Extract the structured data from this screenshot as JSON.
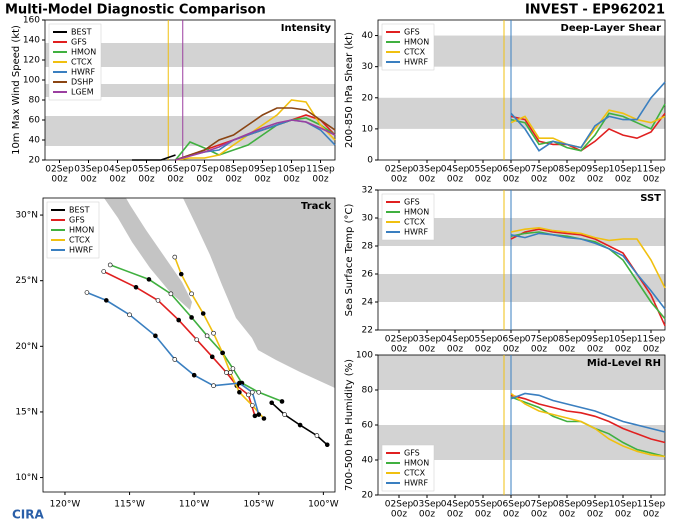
{
  "header": {
    "title": "Multi-Model Diagnostic Comparison",
    "storm": "INVEST - EP962021",
    "logo": "CIRA"
  },
  "chart_data": [
    {
      "type": "time",
      "title": "Intensity",
      "ylabel": "10m Max Wind Speed (kt)",
      "xlim": [
        "01Sep 12z",
        "11Sep 12z"
      ],
      "ylim": [
        20,
        160
      ],
      "yticks": [
        20,
        40,
        60,
        80,
        100,
        120,
        140,
        160
      ],
      "xticks": [
        [
          "02Sep",
          "00z"
        ],
        [
          "03Sep",
          "00z"
        ],
        [
          "04Sep",
          "00z"
        ],
        [
          "05Sep",
          "00z"
        ],
        [
          "06Sep",
          "00z"
        ],
        [
          "07Sep",
          "00z"
        ],
        [
          "08Sep",
          "00z"
        ],
        [
          "09Sep",
          "00z"
        ],
        [
          "10Sep",
          "00z"
        ],
        [
          "11Sep",
          "00z"
        ]
      ],
      "bands": [
        [
          34,
          64
        ],
        [
          83,
          96
        ],
        [
          113,
          137
        ]
      ],
      "legend": "upper left",
      "init_lines": [
        {
          "x": "05Sep 18z",
          "color": "#f0c010"
        },
        {
          "x": "06Sep 06z",
          "color": "#9b3fa0"
        }
      ],
      "x": [
        "06Sep 00z",
        "06Sep 12z",
        "07Sep 00z",
        "07Sep 12z",
        "08Sep 00z",
        "08Sep 12z",
        "09Sep 00z",
        "09Sep 12z",
        "10Sep 00z",
        "10Sep 12z",
        "11Sep 00z",
        "11Sep 12z"
      ],
      "series": [
        {
          "name": "BEST",
          "color": "#000000",
          "x": [
            "04Sep 12z",
            "05Sep 00z",
            "05Sep 12z",
            "06Sep 00z"
          ],
          "values": [
            20,
            20,
            20,
            25
          ]
        },
        {
          "name": "GFS",
          "color": "#e02020",
          "values": [
            20,
            25,
            30,
            35,
            40,
            45,
            50,
            55,
            60,
            65,
            60,
            45
          ]
        },
        {
          "name": "HMON",
          "color": "#40b040",
          "values": [
            20,
            38,
            32,
            25,
            30,
            35,
            45,
            55,
            60,
            62,
            55,
            45
          ]
        },
        {
          "name": "CTCX",
          "color": "#f0c010",
          "values": [
            20,
            22,
            22,
            25,
            35,
            45,
            55,
            65,
            80,
            78,
            55,
            40
          ]
        },
        {
          "name": "HWRF",
          "color": "#3a7fc0",
          "values": [
            20,
            25,
            28,
            30,
            40,
            45,
            50,
            55,
            60,
            58,
            50,
            35
          ]
        },
        {
          "name": "DSHP",
          "color": "#8b4513",
          "values": [
            20,
            25,
            30,
            40,
            45,
            55,
            65,
            72,
            72,
            70,
            60,
            50
          ]
        },
        {
          "name": "LGEM",
          "color": "#9b3fa0",
          "values": [
            20,
            24,
            28,
            33,
            40,
            46,
            52,
            57,
            60,
            58,
            52,
            45
          ]
        }
      ]
    },
    {
      "type": "track",
      "title": "Track",
      "xlim": [
        -121.7,
        -99.1
      ],
      "ylim": [
        8.9,
        31.3
      ],
      "legend": "upper left",
      "xticks": [
        {
          "value": -120,
          "label": "120°W"
        },
        {
          "value": -115,
          "label": "115°W"
        },
        {
          "value": -110,
          "label": "110°W"
        },
        {
          "value": -105,
          "label": "105°W"
        },
        {
          "value": -100,
          "label": "100°W"
        }
      ],
      "yticks": [
        {
          "value": 10,
          "label": "10°N"
        },
        {
          "value": 15,
          "label": "15°N"
        },
        {
          "value": 20,
          "label": "20°N"
        },
        {
          "value": 25,
          "label": "25°N"
        },
        {
          "value": 30,
          "label": "30°N"
        }
      ],
      "series": [
        {
          "name": "BEST",
          "color": "#000000",
          "lon": [
            -99.7,
            -100.5,
            -101.8,
            -103,
            -104
          ],
          "lat": [
            12.5,
            13.2,
            14.0,
            14.8,
            15.7
          ]
        },
        {
          "name": "GFS",
          "color": "#e02020",
          "lon": [
            -105.3,
            -105.8,
            -106.7,
            -107.5,
            -108.6,
            -109.8,
            -111.2,
            -112.8,
            -114.5,
            -117
          ],
          "lat": [
            14.7,
            16.3,
            17.0,
            18.0,
            19.2,
            20.5,
            22.0,
            23.5,
            24.5,
            25.7
          ]
        },
        {
          "name": "HMON",
          "color": "#40b040",
          "lon": [
            -103.2,
            -105,
            -106.3,
            -107,
            -107.8,
            -109,
            -110.2,
            -111.8,
            -113.5,
            -116.5
          ],
          "lat": [
            15.8,
            16.5,
            17.2,
            18.3,
            19.5,
            20.8,
            22.2,
            24.0,
            25.1,
            26.2
          ]
        },
        {
          "name": "CTCX",
          "color": "#f0c010",
          "lon": [
            -104.6,
            -105.5,
            -106.5,
            -107.2,
            -107.8,
            -108.5,
            -109.3,
            -110.2,
            -111,
            -111.5
          ],
          "lat": [
            14.5,
            15.5,
            16.5,
            18,
            19.5,
            21,
            22.5,
            24,
            25.5,
            26.8
          ]
        },
        {
          "name": "HWRF",
          "color": "#3a7fc0",
          "lon": [
            -105,
            -105.5,
            -106.5,
            -108.5,
            -110,
            -111.5,
            -113,
            -115,
            -116.8,
            -118.3
          ],
          "lat": [
            14.8,
            16.5,
            17.2,
            17.0,
            17.8,
            19,
            20.8,
            22.4,
            23.5,
            24.1
          ]
        }
      ]
    },
    {
      "type": "time",
      "title": "Deep-Layer Shear",
      "ylabel": "200-850 hPa Shear (kt)",
      "xlim": [
        "01Sep 06z",
        "11Sep 12z"
      ],
      "ylim": [
        0,
        45
      ],
      "yticks": [
        0,
        10,
        20,
        30,
        40
      ],
      "xticks": [
        [
          "02Sep",
          "00z"
        ],
        [
          "03Sep",
          "00z"
        ],
        [
          "04Sep",
          "00z"
        ],
        [
          "05Sep",
          "00z"
        ],
        [
          "06Sep",
          "00z"
        ],
        [
          "07Sep",
          "00z"
        ],
        [
          "08Sep",
          "00z"
        ],
        [
          "09Sep",
          "00z"
        ],
        [
          "10Sep",
          "00z"
        ],
        [
          "11Sep",
          "00z"
        ]
      ],
      "bands": [
        [
          10,
          20
        ],
        [
          30,
          40
        ]
      ],
      "legend": "upper left",
      "init_lines": [
        {
          "x": "05Sep 18z",
          "color": "#f0c010"
        },
        {
          "x": "06Sep 00z",
          "color": "#3a7fc0"
        }
      ],
      "x": [
        "06Sep 00z",
        "06Sep 12z",
        "07Sep 00z",
        "07Sep 12z",
        "08Sep 00z",
        "08Sep 12z",
        "09Sep 00z",
        "09Sep 12z",
        "10Sep 00z",
        "10Sep 12z",
        "11Sep 00z",
        "11Sep 12z"
      ],
      "series": [
        {
          "name": "GFS",
          "color": "#e02020",
          "values": [
            14,
            13,
            6,
            5,
            5,
            3,
            6,
            10,
            8,
            7,
            9,
            15
          ]
        },
        {
          "name": "HMON",
          "color": "#40b040",
          "values": [
            13,
            12,
            5,
            6,
            4,
            3,
            8,
            15,
            14,
            12,
            10,
            18
          ]
        },
        {
          "name": "CTCX",
          "color": "#f0c010",
          "values": [
            12,
            14,
            7,
            7,
            5,
            4,
            10,
            16,
            15,
            13,
            12,
            14
          ]
        },
        {
          "name": "HWRF",
          "color": "#3a7fc0",
          "values": [
            15,
            10,
            3,
            6,
            5,
            4,
            11,
            14,
            13,
            13,
            20,
            25
          ]
        }
      ]
    },
    {
      "type": "time",
      "title": "SST",
      "ylabel": "Sea Surface Temp (°C)",
      "xlim": [
        "01Sep 06z",
        "11Sep 12z"
      ],
      "ylim": [
        22,
        32
      ],
      "yticks": [
        22,
        24,
        26,
        28,
        30,
        32
      ],
      "xticks": [
        [
          "02Sep",
          "00z"
        ],
        [
          "03Sep",
          "00z"
        ],
        [
          "04Sep",
          "00z"
        ],
        [
          "05Sep",
          "00z"
        ],
        [
          "06Sep",
          "00z"
        ],
        [
          "07Sep",
          "00z"
        ],
        [
          "08Sep",
          "00z"
        ],
        [
          "09Sep",
          "00z"
        ],
        [
          "10Sep",
          "00z"
        ],
        [
          "11Sep",
          "00z"
        ]
      ],
      "bands": [
        [
          24,
          26
        ],
        [
          28,
          30
        ]
      ],
      "legend": "upper left",
      "init_lines": [
        {
          "x": "05Sep 18z",
          "color": "#f0c010"
        },
        {
          "x": "06Sep 00z",
          "color": "#3a7fc0"
        }
      ],
      "x": [
        "06Sep 00z",
        "06Sep 12z",
        "07Sep 00z",
        "07Sep 12z",
        "08Sep 00z",
        "08Sep 12z",
        "09Sep 00z",
        "09Sep 12z",
        "10Sep 00z",
        "10Sep 12z",
        "11Sep 00z",
        "11Sep 12z"
      ],
      "series": [
        {
          "name": "GFS",
          "color": "#e02020",
          "values": [
            28.5,
            29,
            29.2,
            29,
            28.9,
            28.8,
            28.5,
            28,
            27.5,
            26,
            24.5,
            22.3
          ]
        },
        {
          "name": "HMON",
          "color": "#40b040",
          "values": [
            28.7,
            28.9,
            29,
            28.8,
            28.7,
            28.5,
            28.3,
            27.8,
            27,
            25.5,
            24,
            22.8
          ]
        },
        {
          "name": "CTCX",
          "color": "#f0c010",
          "values": [
            29,
            29.2,
            29.3,
            29.1,
            29,
            28.9,
            28.6,
            28.4,
            28.5,
            28.5,
            27,
            25
          ]
        },
        {
          "name": "HWRF",
          "color": "#3a7fc0",
          "values": [
            28.8,
            28.6,
            28.9,
            28.8,
            28.6,
            28.5,
            28.2,
            27.8,
            27.3,
            26,
            24.8,
            23.5
          ]
        }
      ]
    },
    {
      "type": "time",
      "title": "Mid-Level RH",
      "ylabel": "700-500 hPa Humidity (%)",
      "xlim": [
        "01Sep 06z",
        "11Sep 12z"
      ],
      "ylim": [
        20,
        100
      ],
      "yticks": [
        20,
        40,
        60,
        80,
        100
      ],
      "xticks": [
        [
          "02Sep",
          "00z"
        ],
        [
          "03Sep",
          "00z"
        ],
        [
          "04Sep",
          "00z"
        ],
        [
          "05Sep",
          "00z"
        ],
        [
          "06Sep",
          "00z"
        ],
        [
          "07Sep",
          "00z"
        ],
        [
          "08Sep",
          "00z"
        ],
        [
          "09Sep",
          "00z"
        ],
        [
          "10Sep",
          "00z"
        ],
        [
          "11Sep",
          "00z"
        ]
      ],
      "bands": [
        [
          40,
          60
        ],
        [
          80,
          100
        ]
      ],
      "legend": "lower left",
      "init_lines": [
        {
          "x": "05Sep 18z",
          "color": "#f0c010"
        },
        {
          "x": "06Sep 00z",
          "color": "#3a7fc0"
        }
      ],
      "x": [
        "06Sep 00z",
        "06Sep 12z",
        "07Sep 00z",
        "07Sep 12z",
        "08Sep 00z",
        "08Sep 12z",
        "09Sep 00z",
        "09Sep 12z",
        "10Sep 00z",
        "10Sep 12z",
        "11Sep 00z",
        "11Sep 12z"
      ],
      "series": [
        {
          "name": "GFS",
          "color": "#e02020",
          "values": [
            77,
            75,
            72,
            70,
            68,
            67,
            65,
            62,
            58,
            55,
            52,
            50
          ]
        },
        {
          "name": "HMON",
          "color": "#40b040",
          "values": [
            76,
            73,
            70,
            65,
            62,
            62,
            58,
            55,
            50,
            46,
            44,
            42
          ]
        },
        {
          "name": "CTCX",
          "color": "#f0c010",
          "values": [
            78,
            72,
            68,
            66,
            64,
            62,
            58,
            52,
            48,
            45,
            43,
            42
          ]
        },
        {
          "name": "HWRF",
          "color": "#3a7fc0",
          "values": [
            75,
            78,
            77,
            74,
            72,
            70,
            68,
            65,
            62,
            60,
            58,
            56
          ]
        }
      ]
    }
  ]
}
